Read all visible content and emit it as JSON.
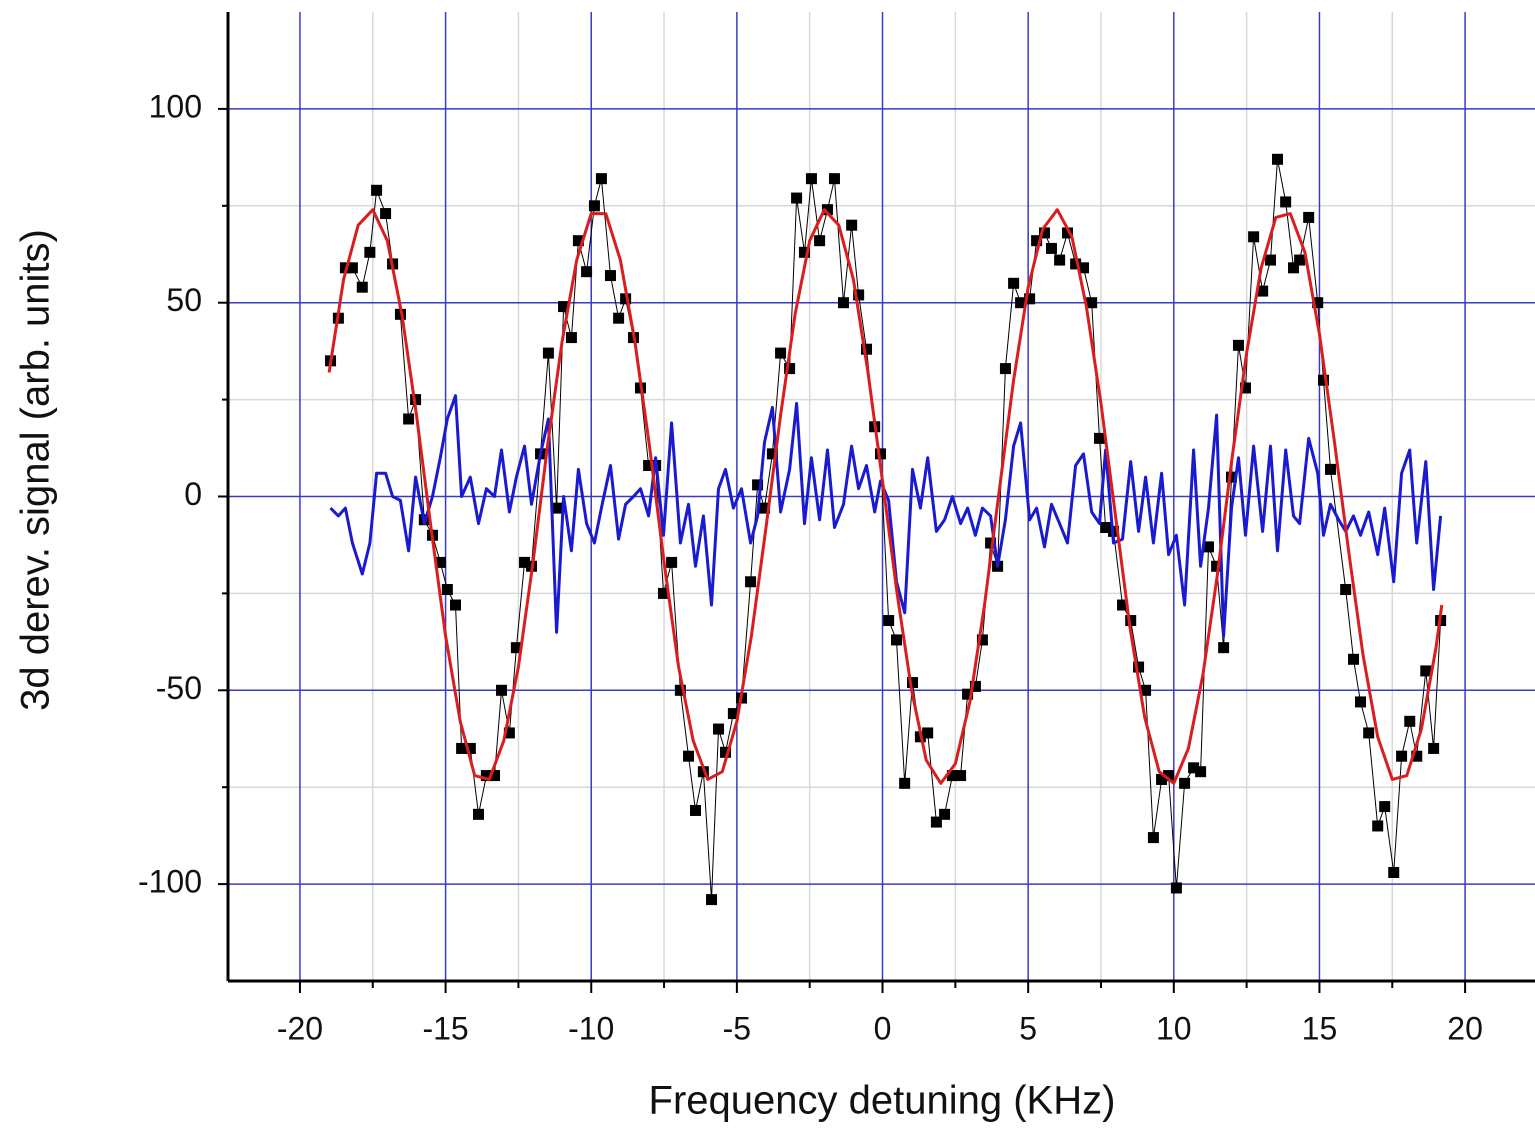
{
  "chart_data": {
    "type": "line",
    "xlabel": "Frequency detuning (KHz)",
    "ylabel": "3d derev. signal (arb. units)",
    "xlim": [
      -22.47,
      22.4
    ],
    "ylim": [
      -125,
      125
    ],
    "xticks": [
      -20,
      -15,
      -10,
      -5,
      0,
      5,
      10,
      15,
      20
    ],
    "yticks": [
      -100,
      -50,
      0,
      50,
      100
    ],
    "xminorticks": [
      -17.5,
      -12.5,
      -7.5,
      -2.5,
      2.5,
      7.5,
      12.5,
      17.5
    ],
    "yminorticks": [
      -75,
      -25,
      25,
      75
    ],
    "grid": true,
    "grid_color": "#3a3ac8",
    "minor_grid_color": "#d8d8d8",
    "series": [
      {
        "color": "#000000",
        "marker": "square",
        "x": [
          -18.95,
          -18.68,
          -18.44,
          -18.2,
          -17.86,
          -17.6,
          -17.37,
          -17.06,
          -16.82,
          -16.55,
          -16.27,
          -16.03,
          -15.73,
          -15.45,
          -15.18,
          -14.94,
          -14.66,
          -14.45,
          -14.15,
          -13.87,
          -13.6,
          -13.32,
          -13.08,
          -12.81,
          -12.57,
          -12.29,
          -12.05,
          -11.74,
          -11.47,
          -11.19,
          -10.95,
          -10.68,
          -10.44,
          -10.16,
          -9.89,
          -9.65,
          -9.34,
          -9.06,
          -8.82,
          -8.55,
          -8.31,
          -8.03,
          -7.79,
          -7.52,
          -7.24,
          -6.94,
          -6.66,
          -6.42,
          -6.15,
          -5.87,
          -5.63,
          -5.39,
          -5.12,
          -4.84,
          -4.53,
          -4.29,
          -4.05,
          -3.78,
          -3.5,
          -3.19,
          -2.95,
          -2.68,
          -2.44,
          -2.16,
          -1.89,
          -1.65,
          -1.34,
          -1.06,
          -0.82,
          -0.55,
          -0.27,
          -0.07,
          0.21,
          0.48,
          0.76,
          1.03,
          1.3,
          1.55,
          1.85,
          2.13,
          2.4,
          2.68,
          2.92,
          3.19,
          3.43,
          3.71,
          3.95,
          4.22,
          4.5,
          4.74,
          5.05,
          5.29,
          5.56,
          5.8,
          6.08,
          6.35,
          6.63,
          6.9,
          7.18,
          7.45,
          7.66,
          7.93,
          8.24,
          8.52,
          8.79,
          9.03,
          9.3,
          9.58,
          9.82,
          10.09,
          10.37,
          10.68,
          10.92,
          11.19,
          11.47,
          11.71,
          11.98,
          12.22,
          12.46,
          12.74,
          13.05,
          13.32,
          13.56,
          13.84,
          14.11,
          14.32,
          14.63,
          14.94,
          15.14,
          15.38,
          15.9,
          16.17,
          16.41,
          16.69,
          17.0,
          17.24,
          17.55,
          17.82,
          18.1,
          18.34,
          18.65,
          18.92,
          19.16
        ],
        "values": [
          35,
          46,
          59,
          59,
          54,
          63,
          79,
          73,
          60,
          47,
          20,
          25,
          -6,
          -10,
          -17,
          -24,
          -28,
          -65,
          -65,
          -82,
          -72,
          -72,
          -50,
          -61,
          -39,
          -17,
          -18,
          11,
          37,
          -3,
          49,
          41,
          66,
          58,
          75,
          82,
          57,
          46,
          51,
          41,
          28,
          8,
          8,
          -25,
          -17,
          -50,
          -67,
          -81,
          -71,
          -104,
          -60,
          -66,
          -56,
          -52,
          -22,
          3,
          -3,
          11,
          37,
          33,
          77,
          63,
          82,
          66,
          74,
          82,
          50,
          70,
          52,
          38,
          18,
          11,
          -32,
          -37,
          -74,
          -48,
          -62,
          -61,
          -84,
          -82,
          -72,
          -72,
          -51,
          -49,
          -37,
          -12,
          -18,
          33,
          55,
          50,
          51,
          66,
          68,
          64,
          61,
          68,
          60,
          59,
          50,
          15,
          -8,
          -9,
          -28,
          -32,
          -44,
          -50,
          -88,
          -73,
          -72,
          -101,
          -74,
          -70,
          -71,
          -13,
          -18,
          -39,
          5,
          39,
          28,
          67,
          53,
          61,
          87,
          76,
          59,
          61,
          72,
          50,
          30,
          7,
          -24,
          -42,
          -53,
          -61,
          -85,
          -80,
          -97,
          -67,
          -58,
          -67,
          -45,
          -65,
          -32
        ]
      },
      {
        "color": "#1a1ad0",
        "x": [
          -18.95,
          -18.68,
          -18.44,
          -18.2,
          -17.86,
          -17.6,
          -17.37,
          -17.06,
          -16.82,
          -16.55,
          -16.27,
          -16.03,
          -15.73,
          -15.45,
          -15.18,
          -14.94,
          -14.66,
          -14.45,
          -14.15,
          -13.87,
          -13.6,
          -13.32,
          -13.08,
          -12.81,
          -12.57,
          -12.29,
          -12.05,
          -11.74,
          -11.47,
          -11.19,
          -10.95,
          -10.68,
          -10.44,
          -10.16,
          -9.89,
          -9.65,
          -9.34,
          -9.06,
          -8.82,
          -8.55,
          -8.31,
          -8.03,
          -7.79,
          -7.52,
          -7.24,
          -6.94,
          -6.66,
          -6.42,
          -6.15,
          -5.87,
          -5.63,
          -5.39,
          -5.12,
          -4.84,
          -4.53,
          -4.29,
          -4.05,
          -3.78,
          -3.5,
          -3.19,
          -2.95,
          -2.68,
          -2.44,
          -2.16,
          -1.89,
          -1.65,
          -1.34,
          -1.06,
          -0.82,
          -0.55,
          -0.27,
          -0.07,
          0.21,
          0.48,
          0.76,
          1.03,
          1.3,
          1.55,
          1.85,
          2.13,
          2.4,
          2.68,
          2.92,
          3.19,
          3.43,
          3.71,
          3.95,
          4.22,
          4.5,
          4.74,
          5.05,
          5.29,
          5.56,
          5.8,
          6.08,
          6.35,
          6.63,
          6.9,
          7.18,
          7.45,
          7.66,
          7.93,
          8.24,
          8.52,
          8.79,
          9.03,
          9.3,
          9.58,
          9.82,
          10.09,
          10.37,
          10.68,
          10.92,
          11.19,
          11.47,
          11.71,
          11.98,
          12.22,
          12.46,
          12.74,
          13.05,
          13.32,
          13.56,
          13.84,
          14.11,
          14.32,
          14.63,
          14.94,
          15.14,
          15.38,
          15.66,
          15.9,
          16.17,
          16.41,
          16.69,
          17.0,
          17.24,
          17.55,
          17.82,
          18.1,
          18.34,
          18.65,
          18.92,
          19.16
        ],
        "values": [
          -3,
          -5,
          -3,
          -12,
          -20,
          -12,
          6,
          6,
          0,
          -1,
          -14,
          5,
          -7,
          0,
          10,
          20,
          26,
          0,
          5,
          -7,
          2,
          0,
          12,
          -4,
          5,
          13,
          -2,
          11,
          20,
          -35,
          0,
          -14,
          7,
          -7,
          -12,
          -3,
          8,
          -11,
          -2,
          0,
          2,
          -5,
          10,
          -10,
          19,
          -12,
          -2,
          -18,
          -5,
          -28,
          2,
          7,
          -3,
          2,
          -12,
          -5,
          14,
          23,
          -4,
          7,
          24,
          -7,
          10,
          -6,
          12,
          -8,
          -2,
          13,
          2,
          8,
          -4,
          4,
          -1,
          -22,
          -30,
          7,
          -3,
          10,
          -9,
          -6,
          0,
          -7,
          -3,
          -10,
          -3,
          -5,
          -18,
          -6,
          13,
          19,
          -6,
          -3,
          -13,
          -2,
          -7,
          -12,
          8,
          11,
          -4,
          -7,
          12,
          -12,
          -11,
          9,
          -9,
          5,
          -12,
          6,
          -15,
          -10,
          -28,
          12,
          -18,
          -3,
          21,
          -36,
          -3,
          10,
          -10,
          13,
          -9,
          13,
          -14,
          12,
          -5,
          -7,
          15,
          6,
          -10,
          -2,
          -6,
          -9,
          -5,
          -10,
          -4,
          -15,
          -3,
          -22,
          6,
          12,
          -12,
          9,
          -24,
          -5
        ]
      },
      {
        "color": "#d81e1e",
        "x": [
          -19,
          -18.5,
          -18,
          -17.5,
          -17,
          -16.5,
          -16,
          -15.5,
          -15,
          -14.5,
          -14,
          -13.5,
          -13,
          -12.5,
          -12,
          -11.5,
          -11,
          -10.5,
          -10,
          -9.5,
          -9,
          -8.5,
          -8,
          -7.5,
          -7,
          -6.5,
          -6,
          -5.5,
          -5,
          -4.5,
          -4,
          -3.5,
          -3,
          -2.5,
          -2,
          -1.5,
          -1,
          -0.5,
          0,
          0.5,
          1,
          1.5,
          2,
          2.5,
          3,
          3.5,
          4,
          4.5,
          5,
          5.5,
          6,
          6.5,
          7,
          7.5,
          8,
          8.5,
          9,
          9.5,
          10,
          10.5,
          11,
          11.5,
          12,
          12.5,
          13,
          13.5,
          14,
          14.5,
          15,
          15.5,
          16,
          16.5,
          17,
          17.5,
          18,
          18.5,
          19,
          19.2
        ],
        "values": [
          32,
          56,
          70,
          74,
          66,
          47,
          21,
          -8,
          -36,
          -58,
          -72,
          -73,
          -63,
          -44,
          -17,
          13,
          40,
          61,
          73,
          73,
          61,
          40,
          13,
          -17,
          -44,
          -63,
          -73,
          -71,
          -58,
          -36,
          -8,
          21,
          47,
          66,
          74,
          70,
          56,
          32,
          4,
          -25,
          -50,
          -68,
          -74,
          -69,
          -53,
          -28,
          1,
          30,
          54,
          69,
          74,
          67,
          49,
          24,
          -5,
          -34,
          -57,
          -71,
          -74,
          -65,
          -46,
          -20,
          10,
          37,
          59,
          72,
          73,
          63,
          42,
          15,
          -14,
          -41,
          -62,
          -73,
          -72,
          -60,
          -39,
          -28
        ]
      }
    ]
  }
}
